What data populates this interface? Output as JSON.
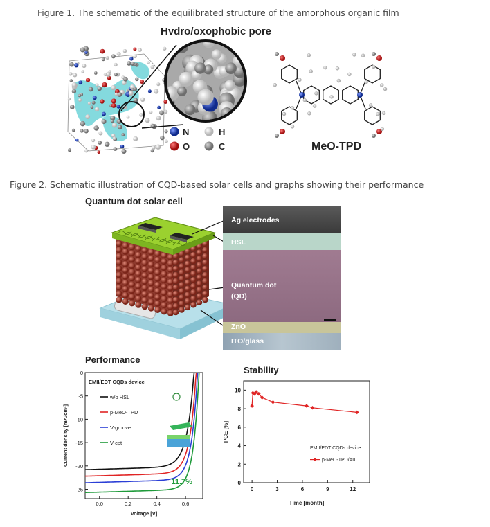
{
  "figure1": {
    "caption": "Figure 1. The schematic of the equilibrated structure of the amorphous organic film",
    "pore_title": "Hydro/oxophobic pore",
    "legend": [
      {
        "label": "N",
        "color": "#1f3fb0"
      },
      {
        "label": "H",
        "color": "#d8d8d8"
      },
      {
        "label": "O",
        "color": "#d11c1c"
      },
      {
        "label": "C",
        "color": "#9a9a9a"
      }
    ],
    "molecule_label": "MeO-TPD"
  },
  "figure2": {
    "caption": "Figure 2. Schematic illustration of CQD-based solar cells and graphs showing their performance",
    "device_title": "Quantum dot solar cell",
    "layers": [
      "Ag electrodes",
      "HSL",
      "Quantum dot",
      "(QD)",
      "ZnO",
      "ITO/glass"
    ],
    "performance_title": "Performance",
    "stability_title": "Stability"
  },
  "chart_data": [
    {
      "type": "line",
      "title": "Performance",
      "xlabel": "Voltage [V]",
      "ylabel": "Current density [mA/cm²]",
      "xlim": [
        -0.1,
        0.72
      ],
      "ylim": [
        -27,
        0
      ],
      "xticks": [
        "0.0",
        "0.2",
        "0.4",
        "0.6"
      ],
      "yticks": [
        "0",
        "-5",
        "-10",
        "-15",
        "-20",
        "-25"
      ],
      "legend_title": "EMII/EDT CQDs device",
      "annotation": "11.7%",
      "series": [
        {
          "name": "w/o HSL",
          "color": "#111111",
          "jsc": -20.8,
          "voc": 0.66,
          "n": 0.048
        },
        {
          "name": "p-MeO-TPD",
          "color": "#e02424",
          "jsc": -22.2,
          "voc": 0.675,
          "n": 0.044
        },
        {
          "name": "V-groove",
          "color": "#2b3fd6",
          "jsc": -23.6,
          "voc": 0.685,
          "n": 0.042
        },
        {
          "name": "V-cpt",
          "color": "#1f9a3a",
          "jsc": -25.7,
          "voc": 0.695,
          "n": 0.04
        }
      ]
    },
    {
      "type": "line",
      "title": "Stability",
      "xlabel": "Time [month]",
      "ylabel": "PCE [%]",
      "xlim": [
        -1,
        14
      ],
      "ylim": [
        0,
        11
      ],
      "xticks": [
        "0",
        "3",
        "6",
        "9",
        "12"
      ],
      "yticks": [
        "0",
        "2",
        "4",
        "6",
        "8",
        "10"
      ],
      "legend_title": "EMII/EDT CQDs device",
      "series": [
        {
          "name": "p-MeO-TPD/Au",
          "color": "#e02424",
          "x": [
            0,
            0.1,
            0.3,
            0.5,
            0.8,
            1.2,
            2.5,
            6.5,
            7.2,
            12.5
          ],
          "y": [
            8.3,
            9.7,
            9.6,
            9.8,
            9.6,
            9.2,
            8.7,
            8.3,
            8.1,
            7.6
          ]
        }
      ]
    }
  ]
}
